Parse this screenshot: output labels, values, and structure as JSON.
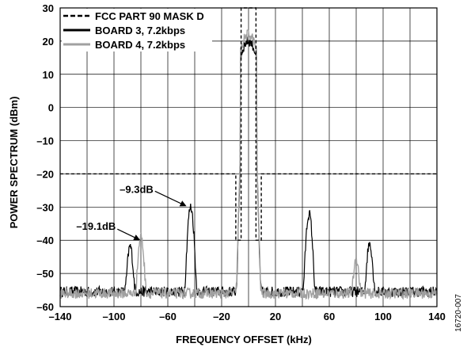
{
  "chart_data": {
    "type": "line",
    "title": "",
    "xlabel": "FREQUENCY OFFSET (kHz)",
    "ylabel": "POWER SPECTRUM (dBm)",
    "xlim": [
      -140,
      140
    ],
    "ylim": [
      -60,
      30
    ],
    "xticks": [
      -140,
      -100,
      -60,
      -20,
      20,
      60,
      100,
      140
    ],
    "xtick_labels": [
      "–140",
      "–100",
      "–60",
      "–20",
      "20",
      "60",
      "100",
      "140"
    ],
    "yticks": [
      30,
      20,
      10,
      0,
      -10,
      -20,
      -30,
      -40,
      -50,
      -60
    ],
    "ytick_labels": [
      "30",
      "20",
      "10",
      "0",
      "–10",
      "–20",
      "–30",
      "–40",
      "–50",
      "–60"
    ],
    "grid": true,
    "legend_position": "top-left",
    "series": [
      {
        "name": "FCC PART 90 MASK D",
        "style": "dashed",
        "color": "#000000",
        "x": [
          -140,
          -9.5,
          -9.5,
          -5.5,
          -5.5,
          5.5,
          5.5,
          9.5,
          9.5,
          140
        ],
        "y": [
          -20,
          -20,
          -40,
          -40,
          30,
          30,
          -40,
          -40,
          -20,
          -20
        ]
      },
      {
        "name": "BOARD 3, 7.2kbps",
        "style": "solid",
        "color": "#000000",
        "peaks": [
          {
            "x": -88,
            "y": -42
          },
          {
            "x": -43,
            "y": -30
          },
          {
            "x": 0,
            "y": 20
          },
          {
            "x": 45,
            "y": -32
          },
          {
            "x": 90,
            "y": -41
          }
        ],
        "noise_floor": -55.5
      },
      {
        "name": "BOARD 4, 7.2kbps",
        "style": "solid",
        "color": "#a0a0a0",
        "peaks": [
          {
            "x": -80,
            "y": -39
          },
          {
            "x": 0,
            "y": 22
          },
          {
            "x": 80,
            "y": -46
          }
        ],
        "noise_floor": -56
      }
    ],
    "annotations": [
      {
        "text": "–9.3dB",
        "x": -46,
        "y": -30
      },
      {
        "text": "–19.1dB",
        "x": -81,
        "y": -40
      }
    ]
  },
  "figure_id": "16720-007"
}
